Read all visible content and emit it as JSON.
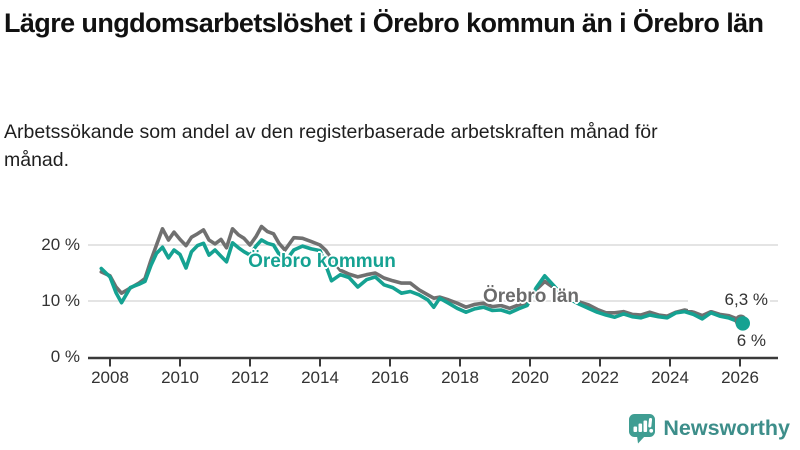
{
  "header": {
    "title": "Lägre ungdomsarbetslöshet i Örebro kommun än i Örebro län",
    "subtitle": "Arbetssökande som andel av den registerbaserade arbetskraften månad för månad."
  },
  "chart_data": {
    "type": "line",
    "title": "Lägre ungdomsarbetslöshet i Örebro kommun än i Örebro län",
    "subtitle": "Arbetssökande som andel av den registerbaserade arbetskraften månad för månad.",
    "xlabel": "",
    "ylabel": "",
    "unit": "%",
    "xlim": [
      2007.4,
      2026.9
    ],
    "ylim": [
      0,
      25
    ],
    "grid": "horizontal",
    "legend_position": "inline-labels",
    "y_ticks": [
      {
        "value": 0,
        "label": "0 %"
      },
      {
        "value": 10,
        "label": "10 %"
      },
      {
        "value": 20,
        "label": "20 %"
      }
    ],
    "x_ticks": [
      2008,
      2010,
      2012,
      2014,
      2016,
      2018,
      2020,
      2022,
      2024,
      2026
    ],
    "x": [
      2007.75,
      2008,
      2008.17,
      2008.33,
      2008.58,
      2008.83,
      2009,
      2009.17,
      2009.33,
      2009.5,
      2009.67,
      2009.83,
      2010,
      2010.17,
      2010.33,
      2010.5,
      2010.67,
      2010.83,
      2011,
      2011.17,
      2011.33,
      2011.5,
      2011.67,
      2011.83,
      2012,
      2012.17,
      2012.33,
      2012.5,
      2012.67,
      2012.83,
      2013,
      2013.25,
      2013.5,
      2013.75,
      2014,
      2014.17,
      2014.33,
      2014.58,
      2014.83,
      2015.08,
      2015.33,
      2015.58,
      2015.83,
      2016.08,
      2016.33,
      2016.58,
      2016.83,
      2017.08,
      2017.25,
      2017.42,
      2017.67,
      2017.92,
      2018.17,
      2018.42,
      2018.67,
      2018.92,
      2019.17,
      2019.42,
      2019.67,
      2019.92,
      2020.17,
      2020.42,
      2020.67,
      2020.92,
      2021.17,
      2021.42,
      2021.67,
      2021.92,
      2022.17,
      2022.42,
      2022.67,
      2022.92,
      2023.17,
      2023.42,
      2023.67,
      2023.92,
      2024.17,
      2024.42,
      2024.67,
      2024.92,
      2025.17,
      2025.42,
      2025.67,
      2025.92,
      2026.08
    ],
    "series": [
      {
        "name": "Örebro län",
        "color": "#707070",
        "end_label": "6,3 %",
        "end_value": 6.3,
        "values": [
          15.2,
          14.5,
          12.5,
          11.4,
          12.3,
          13.2,
          14.0,
          17.3,
          20.0,
          22.9,
          20.9,
          22.3,
          21.0,
          19.9,
          21.4,
          22.0,
          22.7,
          20.9,
          20.2,
          21.0,
          19.5,
          22.9,
          21.8,
          21.2,
          20.0,
          21.5,
          23.3,
          22.4,
          22.0,
          20.3,
          19.1,
          21.3,
          21.2,
          20.6,
          20.0,
          19.0,
          17.5,
          15.5,
          14.8,
          14.3,
          14.7,
          15.0,
          14.1,
          13.6,
          13.2,
          13.2,
          12.0,
          11.1,
          10.5,
          10.7,
          10.2,
          9.6,
          8.9,
          9.4,
          9.6,
          9.0,
          9.2,
          8.7,
          9.3,
          9.8,
          12.0,
          13.5,
          12.4,
          11.2,
          10.5,
          9.8,
          9.3,
          8.5,
          7.9,
          7.9,
          8.1,
          7.6,
          7.5,
          8.0,
          7.5,
          7.3,
          8.0,
          8.4,
          8.0,
          7.4,
          8.1,
          7.6,
          7.4,
          6.8,
          6.3
        ]
      },
      {
        "name": "Örebro kommun",
        "color": "#15a292",
        "end_label": "6 %",
        "end_value": 6.0,
        "values": [
          15.8,
          14.3,
          11.5,
          9.7,
          12.4,
          13.0,
          13.5,
          16.4,
          18.5,
          19.6,
          17.7,
          19.1,
          18.3,
          15.9,
          18.8,
          19.9,
          20.3,
          18.2,
          19.1,
          18.0,
          17.0,
          20.4,
          19.5,
          18.8,
          18.2,
          19.8,
          20.9,
          20.3,
          20.0,
          18.4,
          17.0,
          19.1,
          19.8,
          19.3,
          19.0,
          16.3,
          13.6,
          14.7,
          14.2,
          12.5,
          13.8,
          14.3,
          12.9,
          12.4,
          11.4,
          11.7,
          11.1,
          10.2,
          8.9,
          10.5,
          9.6,
          8.7,
          8.0,
          8.6,
          8.9,
          8.3,
          8.4,
          7.9,
          8.6,
          9.2,
          12.3,
          14.5,
          12.8,
          11.0,
          10.2,
          9.4,
          8.7,
          8.0,
          7.5,
          7.1,
          7.7,
          7.2,
          7.0,
          7.5,
          7.2,
          7.0,
          7.9,
          8.1,
          7.6,
          6.8,
          7.9,
          7.3,
          7.0,
          6.4,
          6.0
        ]
      }
    ]
  },
  "colors": {
    "kommun": "#15a292",
    "lan": "#707070",
    "grid": "#dcdcdc",
    "axis": "#3a3a3a",
    "tick_text": "#333333",
    "brand_teal": "#3f9d92",
    "brand_text": "#3d8e8a"
  },
  "footer": {
    "brand": "Newsworthy"
  }
}
